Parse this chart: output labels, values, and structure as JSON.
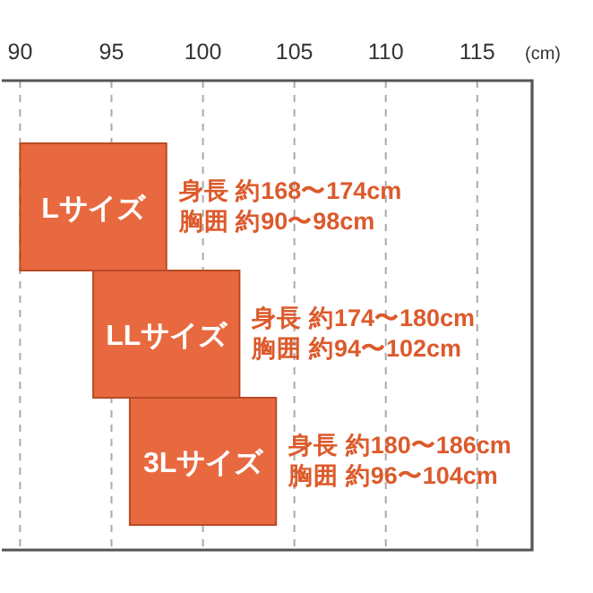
{
  "chart_data": {
    "type": "bar",
    "orientation": "horizontal",
    "categories": [
      "Lサイズ",
      "LLサイズ",
      "3Lサイズ"
    ],
    "base": [
      90,
      94,
      96
    ],
    "values": [
      8,
      8,
      8
    ],
    "color": "#e8693f",
    "xlim": [
      89,
      118
    ],
    "xticks": [
      90,
      95,
      100,
      105,
      110,
      115
    ],
    "xlabel": "(cm)",
    "grid": "x",
    "annotations": [
      {
        "text": "身長 約168〜174cm\n胸囲 約90〜98cm",
        "x": 98,
        "y": "Lサイズ"
      },
      {
        "text": "身長 約174〜180cm\n胸囲 約94〜102cm",
        "x": 102,
        "y": "LLサイズ"
      },
      {
        "text": "身長 約180〜186cm\n胸囲 約96〜104cm",
        "x": 104,
        "y": "3Lサイズ"
      }
    ]
  }
}
